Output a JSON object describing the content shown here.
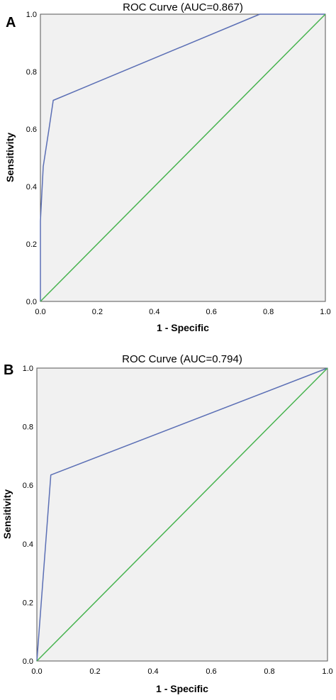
{
  "colors": {
    "roc_line": "#5b6fb5",
    "reference_line": "#47b34f",
    "plot_background": "#f1f1f1",
    "frame": "#555555"
  },
  "chart_data": [
    {
      "type": "line",
      "panel_label": "A",
      "title": "ROC Curve (AUC=0.867)",
      "xlabel": "1 - Specific",
      "ylabel": "Sensitivity",
      "xlim": [
        0,
        1
      ],
      "ylim": [
        0,
        1
      ],
      "x_ticks": [
        "0.0",
        "0.2",
        "0.4",
        "0.6",
        "0.8",
        "1.0"
      ],
      "y_ticks": [
        "0.0",
        "0.2",
        "0.4",
        "0.6",
        "0.8",
        "1.0"
      ],
      "grid": false,
      "legend": "none",
      "series": [
        {
          "role": "roc",
          "x": [
            0.0,
            0.0,
            0.01,
            0.03,
            0.045,
            0.77,
            1.0
          ],
          "y": [
            0.0,
            0.28,
            0.47,
            0.6,
            0.7,
            1.0,
            1.0
          ]
        },
        {
          "role": "reference",
          "x": [
            0.0,
            1.0
          ],
          "y": [
            0.0,
            1.0
          ]
        }
      ]
    },
    {
      "type": "line",
      "panel_label": "B",
      "title": "ROC Curve (AUC=0.794)",
      "xlabel": "1 - Specific",
      "ylabel": "Sensitivity",
      "xlim": [
        0,
        1
      ],
      "ylim": [
        0,
        1
      ],
      "x_ticks": [
        "0.0",
        "0.2",
        "0.4",
        "0.6",
        "0.8",
        "1.0"
      ],
      "y_ticks": [
        "0.0",
        "0.2",
        "0.4",
        "0.6",
        "0.8",
        "1.0"
      ],
      "grid": false,
      "legend": "none",
      "series": [
        {
          "role": "roc",
          "x": [
            0.0,
            0.048,
            1.0
          ],
          "y": [
            0.0,
            0.635,
            1.0
          ]
        },
        {
          "role": "reference",
          "x": [
            0.0,
            1.0
          ],
          "y": [
            0.0,
            1.0
          ]
        }
      ]
    }
  ]
}
